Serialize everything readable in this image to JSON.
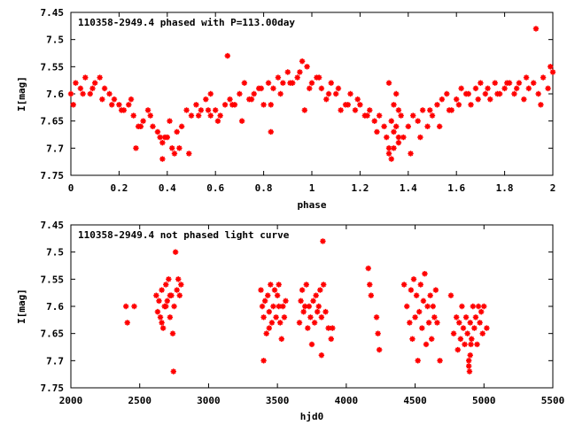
{
  "chart_data": [
    {
      "type": "scatter",
      "title": "110358-2949.4 phased with P=113.00day",
      "xlabel": "phase",
      "ylabel": "I[mag]",
      "xlim": [
        0,
        2
      ],
      "ylim": [
        7.75,
        7.45
      ],
      "y_inverted": true,
      "xticks": [
        "0",
        "0.2",
        "0.4",
        "0.6",
        "0.8",
        "1",
        "1.2",
        "1.4",
        "1.6",
        "1.8",
        "2"
      ],
      "yticks": [
        "7.45",
        "7.5",
        "7.55",
        "7.6",
        "7.65",
        "7.7",
        "7.75"
      ],
      "grid": false,
      "marker_color": "#ff0000",
      "series": [
        {
          "x": [
            0.0,
            0.02,
            0.04,
            0.06,
            0.08,
            0.1,
            0.12,
            0.14,
            0.16,
            0.18,
            0.2,
            0.22,
            0.24,
            0.26,
            0.28,
            0.3,
            0.32,
            0.34,
            0.36,
            0.38,
            0.4,
            0.42,
            0.44,
            0.46,
            0.48,
            0.5,
            0.52,
            0.54,
            0.56,
            0.58,
            0.6,
            0.62,
            0.64,
            0.65,
            0.66,
            0.68,
            0.7,
            0.72,
            0.74,
            0.76,
            0.78,
            0.8,
            0.82,
            0.84,
            0.86,
            0.88,
            0.9,
            0.92,
            0.94,
            0.96,
            0.97,
            0.98,
            1.0,
            1.02,
            1.04,
            1.06,
            1.08,
            1.1,
            1.12,
            1.14,
            1.16,
            1.18,
            1.2,
            1.22,
            1.24,
            1.26,
            1.28,
            1.3,
            1.31,
            1.32,
            1.33,
            1.34,
            1.35,
            1.36,
            1.37,
            1.38,
            1.4,
            1.42,
            1.44,
            1.46,
            1.48,
            1.5,
            1.52,
            1.54,
            1.56,
            1.58,
            1.6,
            1.62,
            1.64,
            1.66,
            1.68,
            1.7,
            1.72,
            1.74,
            1.76,
            1.78,
            1.8,
            1.82,
            1.84,
            1.86,
            1.88,
            1.9,
            1.92,
            1.93,
            1.94,
            1.96,
            1.98,
            2.0,
            0.01,
            0.05,
            0.09,
            0.13,
            0.17,
            0.21,
            0.25,
            0.29,
            0.33,
            0.37,
            0.41,
            0.45,
            0.49,
            0.53,
            0.57,
            0.61,
            0.67,
            0.71,
            0.75,
            0.79,
            0.83,
            0.87,
            0.91,
            0.95,
            0.99,
            1.03,
            1.07,
            1.11,
            1.15,
            1.19,
            1.23,
            1.27,
            1.32,
            1.33,
            1.34,
            1.35,
            1.36,
            1.32,
            1.34,
            1.36,
            1.41,
            1.45,
            1.49,
            1.53,
            1.57,
            1.61,
            1.65,
            1.69,
            1.73,
            1.77,
            1.81,
            1.85,
            1.89,
            1.95,
            1.99,
            0.27,
            0.38,
            0.43,
            0.39,
            0.58,
            0.83
          ],
          "y": [
            7.6,
            7.58,
            7.59,
            7.57,
            7.6,
            7.58,
            7.57,
            7.59,
            7.6,
            7.61,
            7.62,
            7.63,
            7.62,
            7.64,
            7.66,
            7.65,
            7.63,
            7.66,
            7.67,
            7.69,
            7.68,
            7.7,
            7.67,
            7.66,
            7.63,
            7.64,
            7.62,
            7.63,
            7.61,
            7.6,
            7.63,
            7.64,
            7.62,
            7.53,
            7.61,
            7.62,
            7.6,
            7.58,
            7.61,
            7.6,
            7.59,
            7.62,
            7.58,
            7.59,
            7.57,
            7.58,
            7.56,
            7.58,
            7.57,
            7.54,
            7.63,
            7.55,
            7.58,
            7.57,
            7.59,
            7.61,
            7.58,
            7.6,
            7.63,
            7.62,
            7.6,
            7.63,
            7.62,
            7.64,
            7.63,
            7.65,
            7.64,
            7.66,
            7.68,
            7.7,
            7.65,
            7.67,
            7.66,
            7.69,
            7.64,
            7.68,
            7.66,
            7.64,
            7.65,
            7.63,
            7.66,
            7.64,
            7.62,
            7.61,
            7.6,
            7.63,
            7.61,
            7.59,
            7.6,
            7.62,
            7.59,
            7.58,
            7.6,
            7.61,
            7.58,
            7.6,
            7.59,
            7.58,
            7.6,
            7.58,
            7.61,
            7.59,
            7.58,
            7.48,
            7.6,
            7.57,
            7.59,
            7.56,
            7.62,
            7.6,
            7.59,
            7.61,
            7.62,
            7.63,
            7.61,
            7.66,
            7.64,
            7.68,
            7.65,
            7.7,
            7.71,
            7.64,
            7.63,
            7.65,
            7.62,
            7.65,
            7.61,
            7.59,
            7.62,
            7.6,
            7.58,
            7.56,
            7.59,
            7.57,
            7.6,
            7.59,
            7.62,
            7.61,
            7.64,
            7.67,
            7.71,
            7.72,
            7.62,
            7.6,
            7.63,
            7.58,
            7.7,
            7.68,
            7.71,
            7.68,
            7.63,
            7.66,
            7.63,
            7.62,
            7.6,
            7.61,
            7.59,
            7.6,
            7.58,
            7.59,
            7.57,
            7.62,
            7.55,
            7.7,
            7.72,
            7.71,
            7.68,
            7.64,
            7.67
          ]
        }
      ]
    },
    {
      "type": "scatter",
      "title": "110358-2949.4 not phased light curve",
      "xlabel": "hjd0",
      "ylabel": "I[mag]",
      "xlim": [
        2000,
        5500
      ],
      "ylim": [
        7.75,
        7.45
      ],
      "y_inverted": true,
      "xticks": [
        "2000",
        "2500",
        "3000",
        "3500",
        "4000",
        "4500",
        "5000",
        "5500"
      ],
      "yticks": [
        "7.45",
        "7.5",
        "7.55",
        "7.6",
        "7.65",
        "7.7",
        "7.75"
      ],
      "grid": false,
      "marker_color": "#ff0000",
      "series": [
        {
          "x": [
            2400,
            2410,
            2460,
            2620,
            2630,
            2640,
            2650,
            2660,
            2670,
            2680,
            2690,
            2700,
            2710,
            2720,
            2730,
            2740,
            2750,
            2760,
            2770,
            2780,
            2790,
            2800,
            2660,
            2690,
            2720,
            2745,
            3380,
            3390,
            3400,
            3410,
            3420,
            3430,
            3440,
            3450,
            3460,
            3470,
            3480,
            3490,
            3500,
            3510,
            3520,
            3530,
            3540,
            3550,
            3560,
            3400,
            3440,
            3510,
            3660,
            3670,
            3680,
            3690,
            3700,
            3710,
            3720,
            3730,
            3740,
            3750,
            3760,
            3770,
            3780,
            3790,
            3800,
            3810,
            3820,
            3830,
            3850,
            3870,
            3890,
            3900,
            3820,
            3835,
            4160,
            4170,
            4180,
            4220,
            4230,
            4240,
            4420,
            4440,
            4460,
            4470,
            4480,
            4490,
            4500,
            4510,
            4520,
            4530,
            4540,
            4550,
            4560,
            4570,
            4580,
            4590,
            4600,
            4610,
            4620,
            4630,
            4640,
            4650,
            4660,
            4680,
            4760,
            4780,
            4800,
            4810,
            4820,
            4830,
            4840,
            4850,
            4860,
            4870,
            4880,
            4890,
            4900,
            4910,
            4920,
            4930,
            4940,
            4950,
            4960,
            4970,
            4980,
            4990,
            5000,
            5020,
            4890,
            4895,
            4900,
            4905
          ],
          "y": [
            7.6,
            7.63,
            7.6,
            7.58,
            7.61,
            7.59,
            7.62,
            7.57,
            7.64,
            7.6,
            7.56,
            7.59,
            7.55,
            7.62,
            7.58,
            7.65,
            7.6,
            7.5,
            7.57,
            7.55,
            7.58,
            7.56,
            7.63,
            7.6,
            7.58,
            7.72,
            7.57,
            7.6,
            7.62,
            7.59,
            7.65,
            7.58,
            7.61,
            7.56,
            7.63,
            7.6,
            7.57,
            7.62,
            7.58,
            7.6,
            7.63,
            7.66,
            7.6,
            7.62,
            7.59,
            7.7,
            7.64,
            7.56,
            7.63,
            7.59,
            7.57,
            7.61,
            7.6,
            7.56,
            7.64,
            7.6,
            7.62,
            7.67,
            7.59,
            7.63,
            7.58,
            7.61,
            7.6,
            7.57,
            7.62,
            7.48,
            7.61,
            7.64,
            7.66,
            7.64,
            7.69,
            7.56,
            7.53,
            7.56,
            7.58,
            7.62,
            7.65,
            7.68,
            7.56,
            7.6,
            7.63,
            7.57,
            7.66,
            7.55,
            7.62,
            7.58,
            7.7,
            7.61,
            7.56,
            7.64,
            7.59,
            7.54,
            7.67,
            7.6,
            7.63,
            7.58,
            7.66,
            7.6,
            7.62,
            7.57,
            7.63,
            7.7,
            7.58,
            7.65,
            7.62,
            7.68,
            7.63,
            7.66,
            7.6,
            7.64,
            7.67,
            7.62,
            7.65,
            7.7,
            7.63,
            7.66,
            7.6,
            7.64,
            7.62,
            7.67,
            7.6,
            7.63,
            7.61,
            7.65,
            7.6,
            7.64,
            7.71,
            7.72,
            7.69,
            7.67
          ]
        }
      ]
    }
  ]
}
